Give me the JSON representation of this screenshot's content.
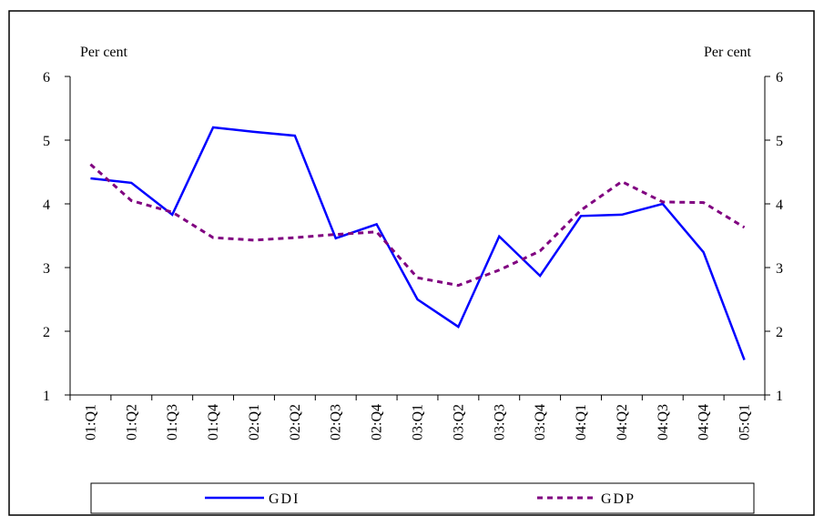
{
  "chart_data": {
    "type": "line",
    "ylabel": "Per cent",
    "y2label": "Per cent",
    "categories": [
      "01:Q1",
      "01:Q2",
      "01:Q3",
      "01:Q4",
      "02:Q1",
      "02:Q2",
      "02:Q3",
      "02:Q4",
      "03:Q1",
      "03:Q2",
      "03:Q3",
      "03:Q4",
      "04:Q1",
      "04:Q2",
      "04:Q3",
      "04:Q4",
      "05:Q1"
    ],
    "series": [
      {
        "name": "GDI",
        "color": "#0000ff",
        "linestyle": "solid",
        "values": [
          4.4,
          4.33,
          3.83,
          5.2,
          5.13,
          5.07,
          3.46,
          3.68,
          2.5,
          2.07,
          3.49,
          2.87,
          3.81,
          3.83,
          4.0,
          3.24,
          1.55
        ]
      },
      {
        "name": "GDP",
        "color": "#800080",
        "linestyle": "dashed",
        "values": [
          4.62,
          4.05,
          3.87,
          3.47,
          3.43,
          3.47,
          3.52,
          3.56,
          2.84,
          2.72,
          2.96,
          3.26,
          3.9,
          4.35,
          4.03,
          4.02,
          3.63
        ]
      }
    ],
    "ylim": [
      1,
      6
    ],
    "yticks": [
      1,
      2,
      3,
      4,
      5,
      6
    ],
    "y2lim": [
      1,
      6
    ],
    "y2ticks": [
      1,
      2,
      3,
      4,
      5,
      6
    ],
    "legend": "bottom"
  }
}
